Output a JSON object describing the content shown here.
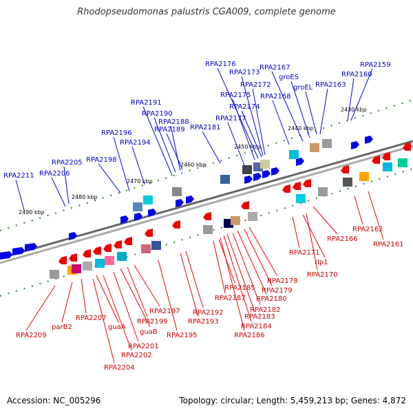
{
  "title": "Rhodopseudomonas palustris CGA009, complete genome",
  "accession": "Accession: NC_005296",
  "summary": "Topology: circular; Length: 5,459,213 bp; Genes: 4,872",
  "colors": {
    "forward": "#0000ee",
    "reverse": "#ee0000",
    "forward_label": "#0000cc",
    "reverse_label": "#cc0000",
    "tick": "#228822",
    "backbone": "#777777"
  },
  "kbp_marks": [
    "2430 kbp",
    "2440 kbp",
    "2450 kbp",
    "2460 kbp",
    "2470 kbp",
    "2480 kbp",
    "2490 kbp"
  ],
  "forward_genes": [
    "RPA2211",
    "RPA2206",
    "RPA2205",
    "RPA2198",
    "RPA2196",
    "RPA2194",
    "RPA2191",
    "RPA2190",
    "RPA2189",
    "RPA2188",
    "RPA2181",
    "RPA2177",
    "RPA2176",
    "RPA2175",
    "RPA2174",
    "RPA2173",
    "RPA2172",
    "RPA2168",
    "RPA2167",
    "groES",
    "groEL",
    "RPA2163",
    "RPA2160",
    "RPA2159"
  ],
  "reverse_genes": [
    "RPA2209",
    "parB2",
    "RPA2207",
    "guaA",
    "RPA2204",
    "RPA2202",
    "RPA2201",
    "guaB",
    "RPA2199",
    "RPA2197",
    "RPA2195",
    "RPA2193",
    "RPA2192",
    "RPA2187",
    "RPA2186",
    "RPA2185",
    "RPA2184",
    "RPA2183",
    "RPA2182",
    "RPA2180",
    "RPA2179",
    "RPA2178",
    "RPA2171",
    "rlp1",
    "RPA2170",
    "RPA2166",
    "RPA2162",
    "RPA2161"
  ]
}
